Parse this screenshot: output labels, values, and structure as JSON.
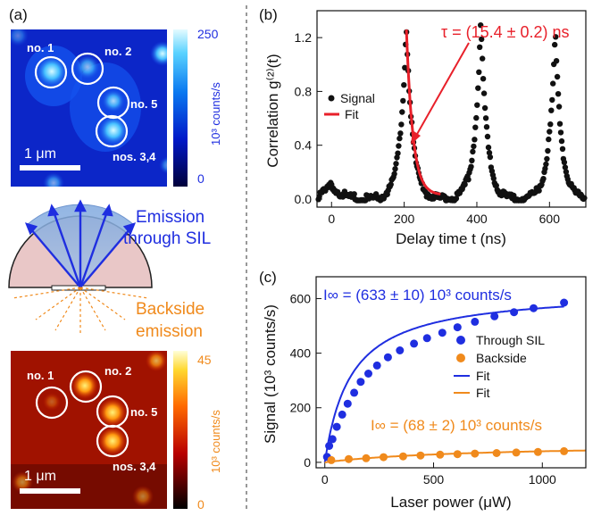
{
  "colors": {
    "blue": "#1f2ee0",
    "orange": "#f08a1c",
    "red": "#e8202a",
    "black": "#111111"
  },
  "panel_a": {
    "label": "(a)",
    "top_map": {
      "scale_label": "1 μm",
      "colorbar_max": "250",
      "colorbar_min": "0",
      "colorbar_unit": "10³ counts/s",
      "emitters": [
        "no. 1",
        "no. 2",
        "no. 5",
        "nos. 3,4"
      ]
    },
    "schematic": {
      "emission_label_1": "Emission",
      "emission_label_2": "through SIL",
      "backside_label_1": "Backside",
      "backside_label_2": "emission"
    },
    "bottom_map": {
      "scale_label": "1 μm",
      "colorbar_max": "45",
      "colorbar_min": "0",
      "colorbar_unit": "10³ counts/s",
      "emitters": [
        "no. 1",
        "no. 2",
        "no. 5",
        "nos. 3,4"
      ]
    }
  },
  "chart_data": [
    {
      "panel": "(b)",
      "type": "scatter",
      "xlabel": "Delay time t (ns)",
      "ylabel": "Correlation g⁽²⁾(t)",
      "xlim": [
        -40,
        700
      ],
      "ylim": [
        -0.06,
        1.4
      ],
      "xticks": [
        0,
        200,
        400,
        600
      ],
      "yticks": [
        0.0,
        0.4,
        0.8,
        1.2
      ],
      "xtick_labels": [
        "0",
        "200",
        "400",
        "600"
      ],
      "ytick_labels": [
        "0.0",
        "0.4",
        "0.8",
        "1.2"
      ],
      "annotation": "τ = (15.4 ± 0.2) ns",
      "legend": [
        "Signal",
        "Fit"
      ],
      "legend_position": "left",
      "peaks": [
        {
          "x": 0,
          "y": 0.11
        },
        {
          "x": 206,
          "y": 1.3
        },
        {
          "x": 411,
          "y": 1.32
        },
        {
          "x": 616,
          "y": 1.24
        }
      ],
      "fit": {
        "x_start": 206,
        "x_end": 300,
        "y_start": 1.26,
        "y_end": 0.03
      }
    },
    {
      "panel": "(c)",
      "type": "scatter",
      "xlabel": "Laser power (μW)",
      "ylabel": "Signal (10³ counts/s)",
      "xlim": [
        -40,
        1200
      ],
      "ylim": [
        -20,
        680
      ],
      "xticks": [
        0,
        500,
        1000
      ],
      "yticks": [
        0,
        200,
        400,
        600
      ],
      "xtick_labels": [
        "0",
        "500",
        "1000"
      ],
      "ytick_labels": [
        "0",
        "200",
        "400",
        "600"
      ],
      "legend": [
        "Through SIL",
        "Backside",
        "Fit",
        "Fit"
      ],
      "legend_position": "right",
      "annotation_sil": "I∞ = (633 ± 10) 10³ counts/s",
      "annotation_back": "I∞ = (68 ± 2) 10³ counts/s",
      "series": [
        {
          "name": "Through SIL",
          "x": [
            10,
            20,
            35,
            55,
            80,
            105,
            135,
            165,
            200,
            240,
            290,
            345,
            410,
            470,
            540,
            610,
            690,
            780,
            870,
            960,
            1100
          ],
          "y": [
            20,
            60,
            85,
            130,
            175,
            215,
            255,
            295,
            325,
            355,
            385,
            410,
            435,
            455,
            475,
            495,
            515,
            535,
            550,
            565,
            585
          ]
        },
        {
          "name": "Backside",
          "x": [
            30,
            110,
            190,
            270,
            360,
            440,
            530,
            610,
            690,
            790,
            880,
            980,
            1100
          ],
          "y": [
            8,
            12,
            15,
            19,
            22,
            25,
            28,
            30,
            32,
            34,
            36,
            38,
            41
          ]
        }
      ],
      "fit_sil": {
        "i_inf": 633,
        "p_sat": 120
      },
      "fit_back": {
        "i_inf": 68,
        "p_sat": 680
      }
    }
  ]
}
